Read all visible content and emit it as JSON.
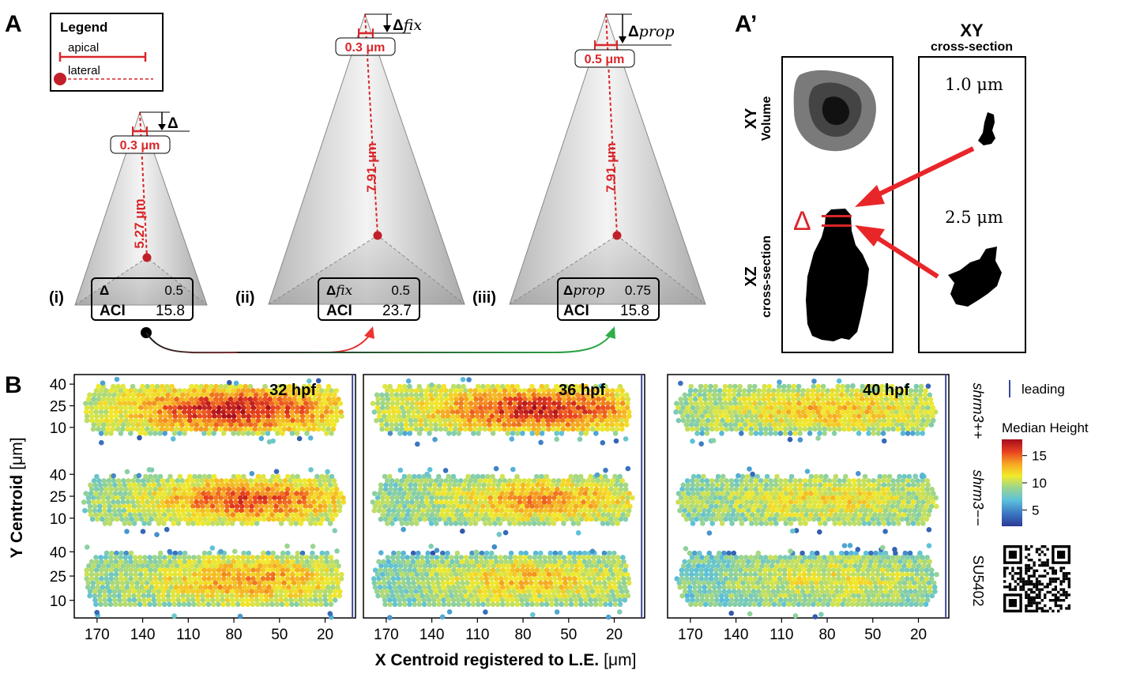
{
  "panels": {
    "A": "A",
    "A_prime": "A’",
    "B": "B"
  },
  "legend": {
    "title": "Legend",
    "apical": "apical",
    "lateral": "lateral"
  },
  "cones": [
    {
      "roman": "(i)",
      "delta_label": "Δ",
      "apical_width": "0.3 μm",
      "lateral_length": "5.27 μm",
      "table_delta_label": "Δ",
      "table_delta_value": "0.5",
      "aci_label": "ACI",
      "aci_value": "15.8"
    },
    {
      "roman": "(ii)",
      "delta_label": "Δ",
      "delta_sub": "fix",
      "apical_width": "0.3 μm",
      "lateral_length": "7.91 μm",
      "table_delta_label": "Δ",
      "table_delta_sub": "fix",
      "table_delta_value": "0.5",
      "aci_label": "ACI",
      "aci_value": "23.7"
    },
    {
      "roman": "(iii)",
      "delta_label": "Δ",
      "delta_sub": "prop",
      "apical_width": "0.5 μm",
      "lateral_length": "7.91 μm",
      "table_delta_label": "Δ",
      "table_delta_sub": "prop",
      "table_delta_value": "0.75",
      "aci_label": "ACI",
      "aci_value": "15.8"
    }
  ],
  "a_prime": {
    "xy_header": "XY",
    "xy_sub": "cross-section",
    "volume_label_top": "XY",
    "volume_label_bottom": "Volume",
    "xz_label_top": "XZ",
    "xz_label_bottom": "cross-section",
    "depth_1": "1.0 μm",
    "depth_2": "2.5 μm",
    "delta": "Δ"
  },
  "chart_data": {
    "type": "heatmap",
    "subtype": "hexbin",
    "timepoints": [
      "32 hpf",
      "36 hpf",
      "40 hpf"
    ],
    "conditions": [
      "shrm3++",
      "shrm3−−",
      "SU5402"
    ],
    "xlabel_bold": "X Centroid registered to L.E.",
    "xlabel_unit": "[μm]",
    "ylabel_bold": "Y Centroid",
    "ylabel_unit": "[μm]",
    "x_ticks": [
      170,
      140,
      110,
      80,
      50,
      20
    ],
    "y_ticks": [
      40,
      25,
      10
    ],
    "xlim": [
      185,
      0
    ],
    "leading_edge_x": 2,
    "legend_line_label": "leading",
    "colorbar_title": "Median Height",
    "colorbar_ticks": [
      15,
      10,
      5
    ],
    "colorbar_range": [
      2,
      18
    ],
    "colors": [
      "#2c3895",
      "#3b79c4",
      "#5cc1dc",
      "#9ed68a",
      "#f2ea2a",
      "#f6a524",
      "#e8401f",
      "#a50d1e"
    ],
    "peak_x": [
      [
        80,
        70,
        70
      ],
      [
        70,
        65,
        75
      ],
      [
        80,
        80,
        75
      ]
    ],
    "peak_median_height": [
      [
        17,
        15.5,
        13.5
      ],
      [
        16.5,
        13.5,
        12.5
      ],
      [
        12.5,
        11.5,
        11
      ]
    ],
    "edge_median_height": [
      [
        9,
        8,
        8
      ],
      [
        9,
        8,
        7.5
      ],
      [
        8.5,
        8,
        7.5
      ]
    ]
  },
  "accent_colors": {
    "red": "#d9262a",
    "green": "#2fae49",
    "blue": "#3a4a9a"
  }
}
